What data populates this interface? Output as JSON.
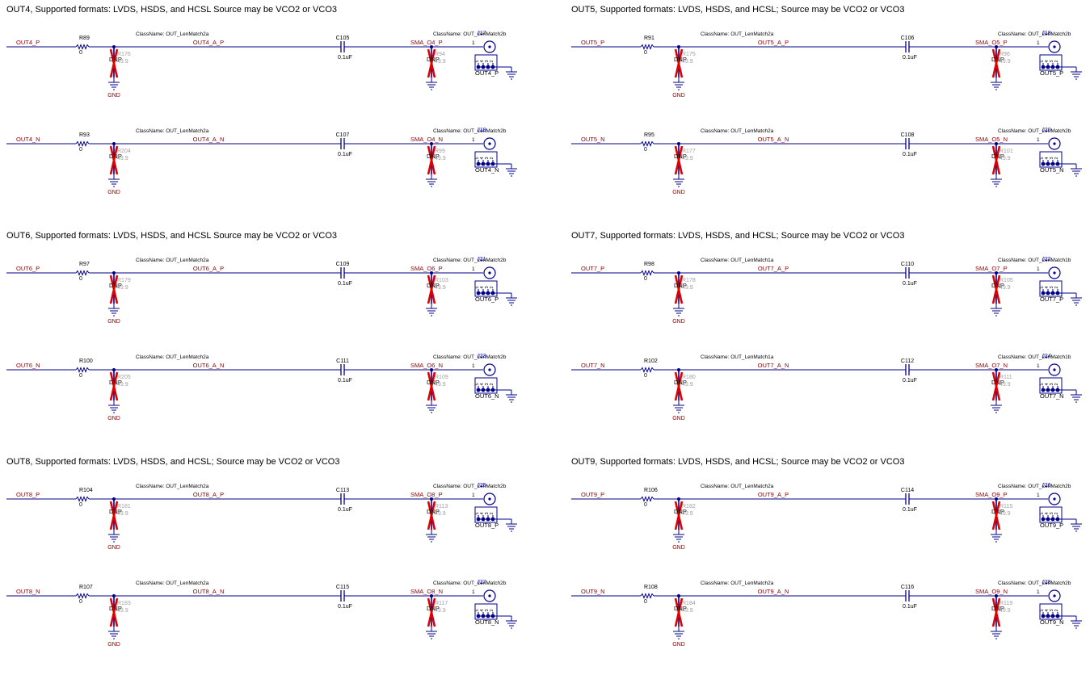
{
  "blocks": [
    {
      "title": "OUT4, Supported formats: LVDS, HSDS, and HCSL Source may be VCO2 or VCO3",
      "channels": [
        {
          "net_in": "OUT4_P",
          "res_ref": "R89",
          "res_val": "0",
          "net_mid": "OUT4_A_P",
          "cap_ref": "C105",
          "cap_val": "0.1uF",
          "net_out": "SMA_O4_P",
          "conn_ref": "J17",
          "conn_label": "OUT4_P",
          "class_a": "ClassName: OUT_LenMatch2a",
          "class_b": "ClassName: OUT_LenMatch2b",
          "dnp_left_ref": "R176",
          "dnp_right_ref": "R94",
          "gnd": "GND"
        },
        {
          "net_in": "OUT4_N",
          "res_ref": "R93",
          "res_val": "0",
          "net_mid": "OUT4_A_N",
          "cap_ref": "C107",
          "cap_val": "0.1uF",
          "net_out": "SMA_O4_N",
          "conn_ref": "J19",
          "conn_label": "OUT4_N",
          "class_a": "ClassName: OUT_LenMatch2a",
          "class_b": "ClassName: OUT_LenMatch2b",
          "dnp_left_ref": "R204",
          "dnp_right_ref": "R99",
          "gnd": "GND"
        }
      ]
    },
    {
      "title": "OUT5, Supported formats: LVDS, HSDS, and HCSL; Source may be VCO2 or VCO3",
      "channels": [
        {
          "net_in": "OUT5_P",
          "res_ref": "R91",
          "res_val": "0",
          "net_mid": "OUT5_A_P",
          "cap_ref": "C106",
          "cap_val": "0.1uF",
          "net_out": "SMA_O5_P",
          "conn_ref": "J18",
          "conn_label": "OUT5_P",
          "class_a": "ClassName: OUT_LenMatch2a",
          "class_b": "ClassName: OUT_LenMatch2b",
          "dnp_left_ref": "R175",
          "dnp_right_ref": "R96",
          "gnd": "GND"
        },
        {
          "net_in": "OUT5_N",
          "res_ref": "R95",
          "res_val": "0",
          "net_mid": "OUT5_A_N",
          "cap_ref": "C108",
          "cap_val": "0.1uF",
          "net_out": "SMA_O5_N",
          "conn_ref": "J20",
          "conn_label": "OUT5_N",
          "class_a": "ClassName: OUT_LenMatch2a",
          "class_b": "ClassName: OUT_LenMatch2b",
          "dnp_left_ref": "R177",
          "dnp_right_ref": "R101",
          "gnd": "GND"
        }
      ]
    },
    {
      "title": "OUT6, Supported formats: LVDS, HSDS, and HCSL Source may be VCO2 or VCO3",
      "channels": [
        {
          "net_in": "OUT6_P",
          "res_ref": "R97",
          "res_val": "0",
          "net_mid": "OUT6_A_P",
          "cap_ref": "C109",
          "cap_val": "0.1uF",
          "net_out": "SMA_O6_P",
          "conn_ref": "J21",
          "conn_label": "OUT6_P",
          "class_a": "ClassName: OUT_LenMatch2a",
          "class_b": "ClassName: OUT_LenMatch2b",
          "dnp_left_ref": "R179",
          "dnp_right_ref": "R103",
          "gnd": "GND"
        },
        {
          "net_in": "OUT6_N",
          "res_ref": "R100",
          "res_val": "0",
          "net_mid": "OUT6_A_N",
          "cap_ref": "C111",
          "cap_val": "0.1uF",
          "net_out": "SMA_O6_N",
          "conn_ref": "J23",
          "conn_label": "OUT6_N",
          "class_a": "ClassName: OUT_LenMatch2a",
          "class_b": "ClassName: OUT_LenMatch2b",
          "dnp_left_ref": "R205",
          "dnp_right_ref": "R109",
          "gnd": "GND"
        }
      ]
    },
    {
      "title": "OUT7, Supported formats: LVDS, HSDS, and HCSL; Source may be VCO2 or VCO3",
      "channels": [
        {
          "net_in": "OUT7_P",
          "res_ref": "R98",
          "res_val": "0",
          "net_mid": "OUT7_A_P",
          "cap_ref": "C110",
          "cap_val": "0.1uF",
          "net_out": "SMA_O7_P",
          "conn_ref": "J22",
          "conn_label": "OUT7_P",
          "class_a": "ClassName: OUT_LenMatch1a",
          "class_b": "ClassName: OUT_LenMatch1b",
          "dnp_left_ref": "R178",
          "dnp_right_ref": "R105",
          "gnd": "GND"
        },
        {
          "net_in": "OUT7_N",
          "res_ref": "R102",
          "res_val": "0",
          "net_mid": "OUT7_A_N",
          "cap_ref": "C112",
          "cap_val": "0.1uF",
          "net_out": "SMA_O7_N",
          "conn_ref": "J24",
          "conn_label": "OUT7_N",
          "class_a": "ClassName: OUT_LenMatch1a",
          "class_b": "ClassName: OUT_LenMatch1b",
          "dnp_left_ref": "R180",
          "dnp_right_ref": "R111",
          "gnd": "GND"
        }
      ]
    },
    {
      "title": "OUT8, Supported formats: LVDS, HSDS, and HCSL; Source may be VCO2 or VCO3",
      "channels": [
        {
          "net_in": "OUT8_P",
          "res_ref": "R104",
          "res_val": "0",
          "net_mid": "OUT8_A_P",
          "cap_ref": "C113",
          "cap_val": "0.1uF",
          "net_out": "SMA_O8_P",
          "conn_ref": "J25",
          "conn_label": "OUT8_P",
          "class_a": "ClassName: OUT_LenMatch2a",
          "class_b": "ClassName: OUT_LenMatch2b",
          "dnp_left_ref": "R181",
          "dnp_right_ref": "R113",
          "gnd": "GND"
        },
        {
          "net_in": "OUT8_N",
          "res_ref": "R107",
          "res_val": "0",
          "net_mid": "OUT8_A_N",
          "cap_ref": "C115",
          "cap_val": "0.1uF",
          "net_out": "SMA_O8_N",
          "conn_ref": "J27",
          "conn_label": "OUT8_N",
          "class_a": "ClassName: OUT_LenMatch2a",
          "class_b": "ClassName: OUT_LenMatch2b",
          "dnp_left_ref": "R183",
          "dnp_right_ref": "R117",
          "gnd": "GND"
        }
      ]
    },
    {
      "title": "OUT9, Supported formats: LVDS, HSDS, and HCSL; Source may be VCO2 or VCO3",
      "channels": [
        {
          "net_in": "OUT9_P",
          "res_ref": "R106",
          "res_val": "0",
          "net_mid": "OUT9_A_P",
          "cap_ref": "C114",
          "cap_val": "0.1uF",
          "net_out": "SMA_O9_P",
          "conn_ref": "J26",
          "conn_label": "OUT9_P",
          "class_a": "ClassName: OUT_LenMatch2a",
          "class_b": "ClassName: OUT_LenMatch2b",
          "dnp_left_ref": "R182",
          "dnp_right_ref": "R115",
          "gnd": "GND"
        },
        {
          "net_in": "OUT9_N",
          "res_ref": "R108",
          "res_val": "0",
          "net_mid": "OUT9_A_N",
          "cap_ref": "C116",
          "cap_val": "0.1uF",
          "net_out": "SMA_O9_N",
          "conn_ref": "J28",
          "conn_label": "OUT9_N",
          "class_a": "ClassName: OUT_LenMatch2a",
          "class_b": "ClassName: OUT_LenMatch2b",
          "dnp_left_ref": "R184",
          "dnp_right_ref": "R119",
          "gnd": "GND"
        }
      ]
    }
  ],
  "common": {
    "dnp": "DNP",
    "dnp_value": "49.9",
    "pin_1": "1",
    "pin_2": "2",
    "pin_3": "3",
    "pin_4": "4",
    "pin_5": "5"
  },
  "colors": {
    "wire": "#00008b",
    "net_label": "#8b0000",
    "ref": "#000000",
    "dnp_cross": "#e00000",
    "dnp_faded": "#a0a0a0",
    "connector_ref": "#0000cd",
    "gnd": "#8b0000"
  }
}
